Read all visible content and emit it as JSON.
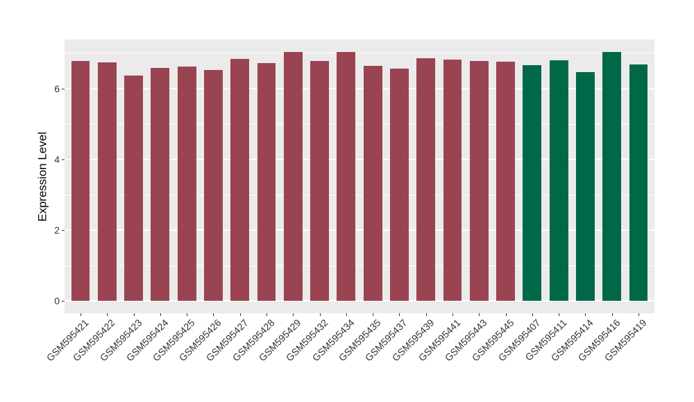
{
  "chart_data": {
    "type": "bar",
    "title": "",
    "xlabel": "",
    "ylabel": "Expression Level",
    "categories": [
      "GSM595421",
      "GSM595422",
      "GSM595423",
      "GSM595424",
      "GSM595425",
      "GSM595426",
      "GSM595427",
      "GSM595428",
      "GSM595429",
      "GSM595432",
      "GSM595434",
      "GSM595435",
      "GSM595437",
      "GSM595439",
      "GSM595441",
      "GSM595443",
      "GSM595445",
      "GSM595407",
      "GSM595411",
      "GSM595414",
      "GSM595416",
      "GSM595419"
    ],
    "values": [
      6.78,
      6.75,
      6.37,
      6.58,
      6.63,
      6.52,
      6.84,
      6.72,
      7.03,
      6.78,
      7.03,
      6.64,
      6.57,
      6.86,
      6.83,
      6.79,
      6.77,
      6.67,
      6.8,
      6.48,
      7.04,
      6.68
    ],
    "bar_groups": [
      "darkred",
      "darkred",
      "darkred",
      "darkred",
      "darkred",
      "darkred",
      "darkred",
      "darkred",
      "darkred",
      "darkred",
      "darkred",
      "darkred",
      "darkred",
      "darkred",
      "darkred",
      "darkred",
      "darkred",
      "darkgreen",
      "darkgreen",
      "darkgreen",
      "darkgreen",
      "darkgreen"
    ],
    "colors": {
      "darkred": "#9A4452",
      "darkgreen": "#006848",
      "panel_background": "#EBEBEB",
      "gridline": "#FFFFFF",
      "axis_text": "#333333"
    },
    "yticks": [
      0,
      2,
      4,
      6
    ],
    "minor_yticks": [
      1,
      3,
      5,
      7
    ],
    "ylim": [
      -0.35,
      7.39
    ],
    "grid": true,
    "legend_position": "none",
    "bar_width_fraction": 0.7
  }
}
